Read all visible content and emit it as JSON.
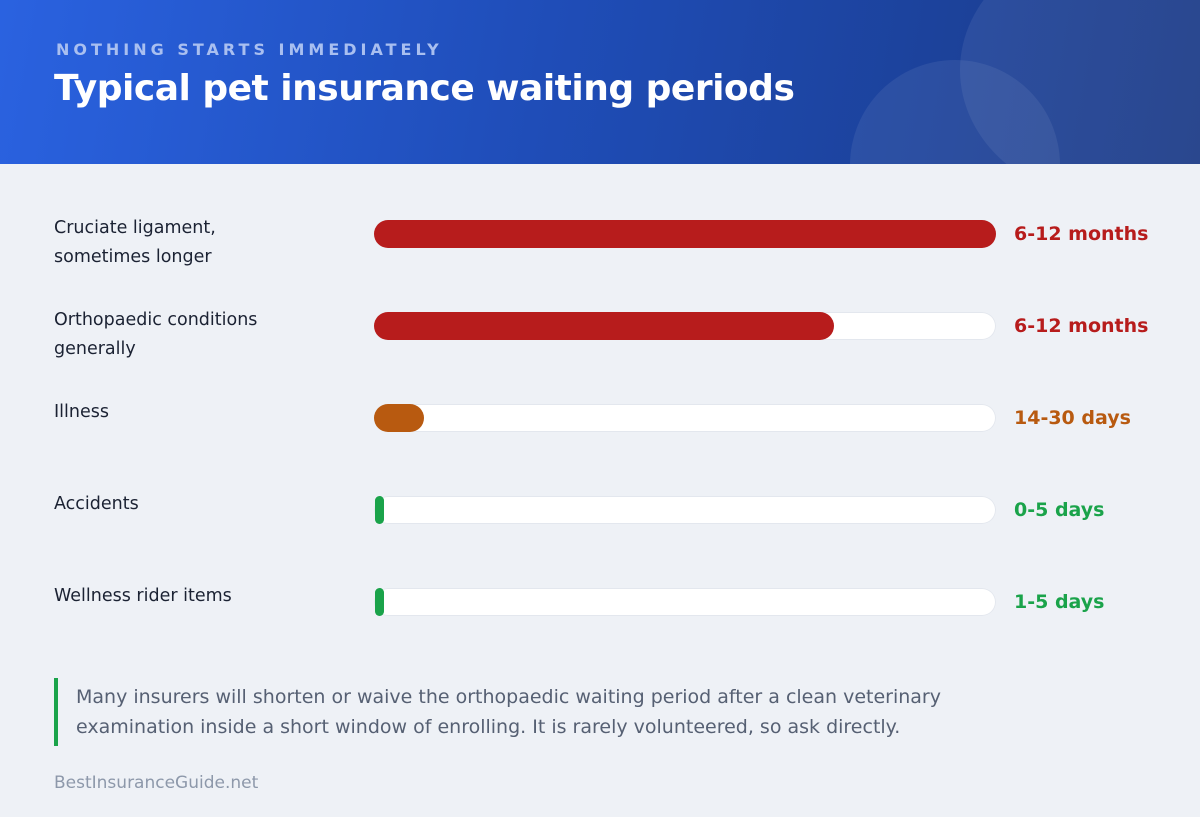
{
  "header": {
    "kicker": "NOTHING STARTS IMMEDIATELY",
    "title": "Typical pet insurance waiting periods"
  },
  "chart_data": {
    "type": "bar",
    "orientation": "horizontal",
    "categories": [
      "Cruciate ligament, sometimes longer",
      "Orthopaedic conditions generally",
      "Illness",
      "Accidents",
      "Wellness rider items"
    ],
    "value_labels": [
      "6-12 months",
      "6-12 months",
      "14-30 days",
      "0-5 days",
      "1-5 days"
    ],
    "values": [
      1.0,
      0.74,
      0.08,
      0.005,
      0.005
    ],
    "colors": [
      "#b71c1c",
      "#b71c1c",
      "#b85a10",
      "#1aa34a",
      "#1aa34a"
    ],
    "grid": false,
    "legend": "none"
  },
  "rows": [
    {
      "label_line1": "Cruciate ligament,",
      "label_line2": "sometimes longer",
      "value": "6-12 months"
    },
    {
      "label_line1": "Orthopaedic conditions",
      "label_line2": "generally",
      "value": "6-12 months"
    },
    {
      "label_line1": "Illness",
      "label_line2": "",
      "value": "14-30 days"
    },
    {
      "label_line1": "Accidents",
      "label_line2": "",
      "value": "0-5 days"
    },
    {
      "label_line1": "Wellness rider items",
      "label_line2": "",
      "value": "1-5 days"
    }
  ],
  "note": {
    "text": "Many insurers will shorten or waive the orthopaedic waiting period after a clean veterinary examination inside a short window of enrolling. It is rarely volunteered, so ask directly."
  },
  "footer": {
    "brand": "BestInsuranceGuide.net"
  },
  "colors": {
    "accent_red": "#b71c1c",
    "accent_orange": "#b85a10",
    "accent_green": "#1aa34a",
    "header_blue": "#1f4db8"
  }
}
